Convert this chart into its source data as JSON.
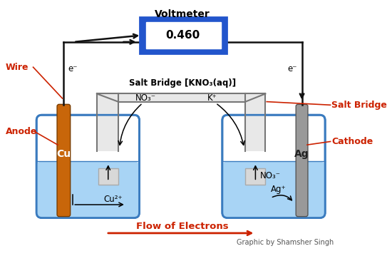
{
  "title": "Voltmeter",
  "voltmeter_value": "0.460",
  "salt_bridge_label": "Salt Bridge [KNO₃(aq)]",
  "no3_label": "NO₃⁻",
  "k_label": "K⁺",
  "wire_label": "Wire",
  "anode_label": "Anode",
  "cathode_label": "Cathode",
  "salt_bridge_side_label": "Salt Bridge",
  "cu_label": "Cu",
  "ag_label": "Ag",
  "cu2_label": "Cu²⁺",
  "ag_plus_label": "Ag⁺",
  "no3_bottom_label": "NO₃⁻",
  "flow_label": "Flow of Electrons",
  "credit_label": "Graphic by Shamsher Singh",
  "e_minus": "e⁻",
  "bg_color": "#ffffff",
  "beaker_fill": "#a8d4f5",
  "beaker_stroke": "#3a7bbf",
  "cu_electrode_color": "#c8660a",
  "ag_electrode_color": "#999999",
  "voltmeter_box_color": "#2255cc",
  "label_color_red": "#cc2200",
  "flow_arrow_color": "#cc2200",
  "deposit_color": "#cccccc",
  "wire_color": "#111111",
  "salt_bridge_color": "#777777"
}
